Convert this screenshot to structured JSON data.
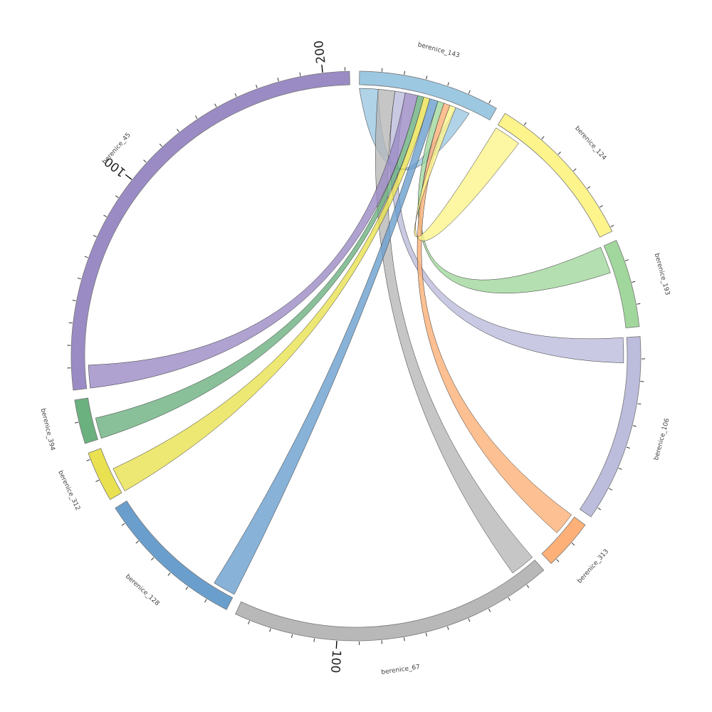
{
  "chart_data": {
    "type": "chord",
    "tick_step": 10,
    "groups": [
      {
        "name": "berenice_143",
        "value": 64,
        "color": "#9dc8e2",
        "ticks": []
      },
      {
        "name": "berenice_124",
        "value": 72,
        "color": "#fdf48c",
        "ticks": []
      },
      {
        "name": "berenice_193",
        "value": 40,
        "color": "#a1d79c",
        "ticks": []
      },
      {
        "name": "berenice_106",
        "value": 85,
        "color": "#bcbcdc",
        "ticks": []
      },
      {
        "name": "berenice_313",
        "value": 23,
        "color": "#fdb077",
        "ticks": []
      },
      {
        "name": "berenice_67",
        "value": 147,
        "color": "#b8b8b8",
        "ticks": [
          100
        ]
      },
      {
        "name": "berenice_128",
        "value": 68,
        "color": "#6a9fcd",
        "ticks": []
      },
      {
        "name": "berenice_312",
        "value": 23,
        "color": "#e9e150",
        "ticks": []
      },
      {
        "name": "berenice_394",
        "value": 20,
        "color": "#6bb07f",
        "ticks": []
      },
      {
        "name": "berenice_45",
        "value": 212,
        "color": "#9b8bc4",
        "ticks": [
          100,
          200
        ]
      }
    ],
    "links": [
      {
        "source": 0,
        "target": 0,
        "source_value": 9,
        "target_value": 7
      },
      {
        "source": 0,
        "target": 5,
        "source_value": 8,
        "target_value": 12
      },
      {
        "source": 0,
        "target": 3,
        "source_value": 5,
        "target_value": 12
      },
      {
        "source": 0,
        "target": 9,
        "source_value": 6,
        "target_value": 11
      },
      {
        "source": 0,
        "target": 8,
        "source_value": 3,
        "target_value": 10
      },
      {
        "source": 0,
        "target": 7,
        "source_value": 3,
        "target_value": 12
      },
      {
        "source": 0,
        "target": 6,
        "source_value": 4,
        "target_value": 11
      },
      {
        "source": 0,
        "target": 2,
        "source_value": 3,
        "target_value": 13
      },
      {
        "source": 0,
        "target": 4,
        "source_value": 3,
        "target_value": 11
      },
      {
        "source": 0,
        "target": 1,
        "source_value": 3,
        "target_value": 13
      }
    ]
  }
}
